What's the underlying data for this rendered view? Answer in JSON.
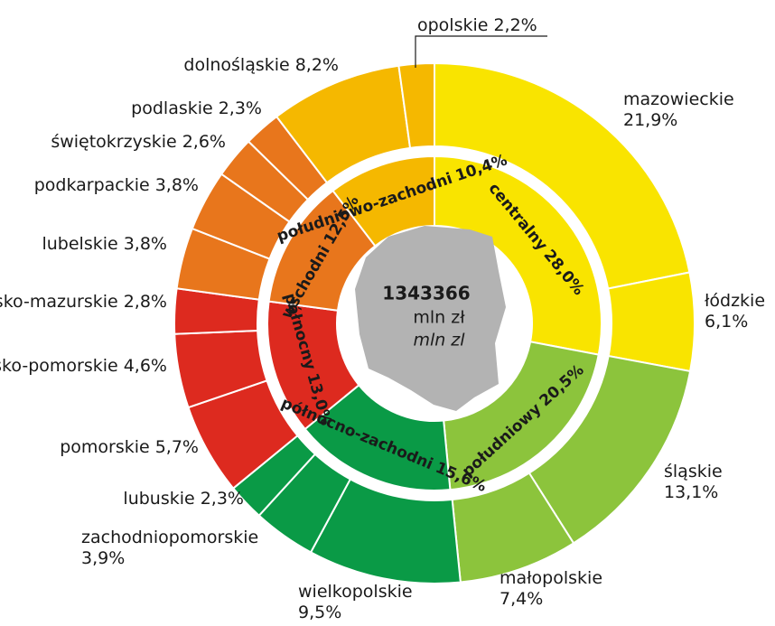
{
  "chart_data": {
    "type": "sunburst",
    "total": 1343366,
    "unit": "mln zł",
    "unit_alt": "mln zl",
    "inner": {
      "categories": [
        "centralny",
        "południowy",
        "północno-zachodni",
        "północny",
        "wschodni",
        "południowo-zachodni"
      ],
      "values": [
        28.0,
        20.5,
        15.6,
        13.0,
        12.5,
        10.4
      ],
      "value_labels": [
        "28,0%",
        "20,5%",
        "15,6%",
        "13,0%",
        "12,5%",
        "10,4%"
      ],
      "colors": [
        "#f9e400",
        "#8cc43c",
        "#0a9a46",
        "#dd2a1f",
        "#e8761c",
        "#f5b800"
      ]
    },
    "outer": {
      "categories": [
        "mazowieckie",
        "łódzkie",
        "śląskie",
        "małopolskie",
        "wielkopolskie",
        "zachodniopomorskie",
        "lubuskie",
        "pomorskie",
        "kujawsko-pomorskie",
        "warmińsko-mazurskie",
        "lubelskie",
        "podkarpackie",
        "świętokrzyskie",
        "podlaskie",
        "dolnośląskie",
        "opolskie"
      ],
      "values": [
        21.9,
        6.1,
        13.1,
        7.4,
        9.5,
        3.9,
        2.3,
        5.7,
        4.6,
        2.8,
        3.8,
        3.8,
        2.6,
        2.3,
        8.2,
        2.2
      ],
      "value_labels": [
        "21,9%",
        "6,1%",
        "13,1%",
        "7,4%",
        "9,5%",
        "3,9%",
        "2,3%",
        "5,7%",
        "4,6%",
        "2,8%",
        "3,8%",
        "3,8%",
        "2,6%",
        "2,3%",
        "8,2%",
        "2,2%"
      ],
      "colors": [
        "#f9e400",
        "#f9e400",
        "#8cc43c",
        "#8cc43c",
        "#0a9a46",
        "#0a9a46",
        "#0a9a46",
        "#dd2a1f",
        "#dd2a1f",
        "#dd2a1f",
        "#e8761c",
        "#e8761c",
        "#e8761c",
        "#e8761c",
        "#f5b800",
        "#f5b800"
      ]
    }
  }
}
